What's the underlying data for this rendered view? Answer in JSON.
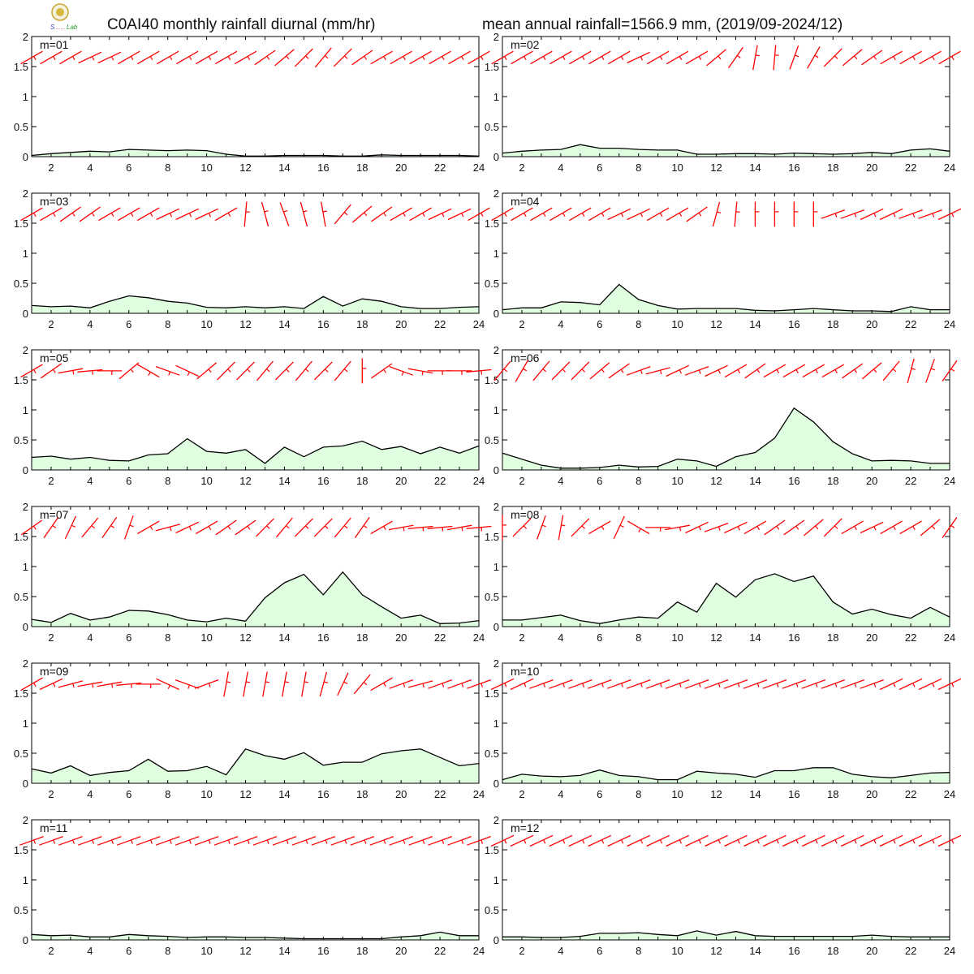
{
  "header": {
    "title_left": "C0AI40 monthly rainfall diurnal (mm/hr)",
    "title_right": "mean annual rainfall=1566.9 mm, (2019/09-2024/12)",
    "logo_text": "Lab"
  },
  "chart_data": {
    "type": "area",
    "x": [
      1,
      2,
      3,
      4,
      5,
      6,
      7,
      8,
      9,
      10,
      11,
      12,
      13,
      14,
      15,
      16,
      17,
      18,
      19,
      20,
      21,
      22,
      23,
      24
    ],
    "xticks": [
      "2",
      "4",
      "6",
      "8",
      "10",
      "12",
      "14",
      "16",
      "18",
      "20",
      "22",
      "24"
    ],
    "xlim": [
      1,
      24
    ],
    "yticks": [
      "0",
      "0.5",
      "1",
      "1.5",
      "2"
    ],
    "ylim": [
      0,
      2
    ],
    "fill_color": "#e0ffe0",
    "line_color": "#000000",
    "wind_color": "#ff0000",
    "panels": [
      {
        "label": "m=01",
        "values": [
          0.02,
          0.05,
          0.07,
          0.09,
          0.08,
          0.12,
          0.11,
          0.1,
          0.11,
          0.1,
          0.04,
          0.01,
          0.01,
          0.02,
          0.02,
          0.02,
          0.01,
          0.01,
          0.03,
          0.02,
          0.02,
          0.02,
          0.02,
          0.01
        ],
        "wind_dir": [
          60,
          60,
          60,
          65,
          65,
          60,
          60,
          60,
          60,
          60,
          60,
          60,
          55,
          50,
          45,
          40,
          45,
          55,
          60,
          60,
          60,
          60,
          60,
          60
        ]
      },
      {
        "label": "m=02",
        "values": [
          0.06,
          0.09,
          0.11,
          0.12,
          0.2,
          0.14,
          0.14,
          0.12,
          0.11,
          0.11,
          0.04,
          0.04,
          0.05,
          0.05,
          0.04,
          0.06,
          0.05,
          0.04,
          0.05,
          0.07,
          0.05,
          0.11,
          0.13,
          0.09
        ],
        "wind_dir": [
          60,
          60,
          60,
          60,
          60,
          60,
          60,
          65,
          60,
          60,
          60,
          50,
          35,
          10,
          5,
          20,
          30,
          45,
          50,
          55,
          60,
          60,
          60,
          60
        ]
      },
      {
        "label": "m=03",
        "values": [
          0.13,
          0.11,
          0.12,
          0.09,
          0.2,
          0.29,
          0.26,
          0.2,
          0.17,
          0.1,
          0.09,
          0.11,
          0.09,
          0.11,
          0.08,
          0.28,
          0.12,
          0.24,
          0.2,
          0.11,
          0.08,
          0.08,
          0.1,
          0.11
        ],
        "wind_dir": [
          60,
          60,
          55,
          55,
          60,
          60,
          60,
          65,
          65,
          65,
          60,
          5,
          345,
          340,
          345,
          350,
          40,
          50,
          55,
          60,
          60,
          65,
          65,
          60
        ]
      },
      {
        "label": "m=04",
        "values": [
          0.06,
          0.09,
          0.09,
          0.19,
          0.18,
          0.14,
          0.48,
          0.23,
          0.13,
          0.07,
          0.08,
          0.08,
          0.08,
          0.05,
          0.04,
          0.06,
          0.08,
          0.06,
          0.04,
          0.04,
          0.03,
          0.11,
          0.06,
          0.06
        ],
        "wind_dir": [
          60,
          60,
          60,
          60,
          60,
          60,
          65,
          65,
          60,
          60,
          55,
          15,
          5,
          0,
          0,
          0,
          0,
          70,
          70,
          65,
          65,
          70,
          70,
          65
        ]
      },
      {
        "label": "m=05",
        "values": [
          0.21,
          0.23,
          0.18,
          0.21,
          0.16,
          0.15,
          0.25,
          0.27,
          0.52,
          0.31,
          0.28,
          0.34,
          0.11,
          0.38,
          0.22,
          0.38,
          0.4,
          0.48,
          0.34,
          0.39,
          0.27,
          0.38,
          0.28,
          0.4
        ],
        "wind_dir": [
          60,
          55,
          80,
          85,
          90,
          50,
          120,
          110,
          115,
          50,
          45,
          45,
          40,
          45,
          40,
          45,
          40,
          0,
          55,
          110,
          100,
          90,
          90,
          85
        ]
      },
      {
        "label": "m=06",
        "values": [
          0.28,
          0.18,
          0.08,
          0.03,
          0.03,
          0.04,
          0.08,
          0.05,
          0.06,
          0.18,
          0.15,
          0.06,
          0.22,
          0.29,
          0.53,
          1.03,
          0.8,
          0.47,
          0.27,
          0.15,
          0.16,
          0.15,
          0.11,
          0.11
        ],
        "wind_dir": [
          40,
          30,
          40,
          45,
          45,
          50,
          55,
          70,
          75,
          65,
          70,
          65,
          60,
          55,
          60,
          60,
          60,
          60,
          55,
          50,
          40,
          15,
          20,
          35
        ]
      },
      {
        "label": "m=07",
        "values": [
          0.12,
          0.07,
          0.22,
          0.11,
          0.16,
          0.27,
          0.26,
          0.2,
          0.11,
          0.08,
          0.14,
          0.09,
          0.48,
          0.73,
          0.87,
          0.53,
          0.91,
          0.53,
          0.33,
          0.14,
          0.19,
          0.05,
          0.06,
          0.1
        ],
        "wind_dir": [
          55,
          35,
          25,
          40,
          35,
          20,
          60,
          75,
          65,
          60,
          55,
          55,
          45,
          40,
          45,
          45,
          40,
          35,
          60,
          80,
          85,
          85,
          80,
          85
        ]
      },
      {
        "label": "m=08",
        "values": [
          0.11,
          0.11,
          0.15,
          0.19,
          0.1,
          0.05,
          0.11,
          0.16,
          0.14,
          0.41,
          0.24,
          0.72,
          0.49,
          0.78,
          0.88,
          0.75,
          0.84,
          0.41,
          0.21,
          0.29,
          0.2,
          0.14,
          0.32,
          0.16
        ],
        "wind_dir": [
          0,
          45,
          20,
          10,
          45,
          60,
          25,
          120,
          90,
          80,
          65,
          70,
          65,
          60,
          55,
          55,
          50,
          45,
          60,
          65,
          60,
          60,
          50,
          35
        ]
      },
      {
        "label": "m=09",
        "values": [
          0.24,
          0.17,
          0.29,
          0.13,
          0.18,
          0.21,
          0.4,
          0.2,
          0.21,
          0.28,
          0.14,
          0.57,
          0.46,
          0.4,
          0.51,
          0.3,
          0.35,
          0.35,
          0.49,
          0.54,
          0.57,
          0.43,
          0.29,
          0.33
        ],
        "wind_dir": [
          60,
          65,
          75,
          80,
          80,
          85,
          90,
          115,
          110,
          70,
          10,
          10,
          10,
          10,
          10,
          15,
          25,
          40,
          60,
          70,
          75,
          70,
          70,
          70
        ]
      },
      {
        "label": "m=10",
        "values": [
          0.06,
          0.15,
          0.12,
          0.11,
          0.13,
          0.22,
          0.13,
          0.11,
          0.06,
          0.06,
          0.2,
          0.17,
          0.15,
          0.1,
          0.21,
          0.21,
          0.26,
          0.26,
          0.15,
          0.11,
          0.09,
          0.13,
          0.17,
          0.18
        ],
        "wind_dir": [
          65,
          65,
          70,
          70,
          70,
          70,
          70,
          70,
          70,
          70,
          70,
          70,
          70,
          70,
          70,
          70,
          70,
          70,
          70,
          70,
          65,
          65,
          65,
          65
        ]
      },
      {
        "label": "m=11",
        "values": [
          0.09,
          0.07,
          0.08,
          0.05,
          0.05,
          0.09,
          0.07,
          0.06,
          0.04,
          0.05,
          0.05,
          0.04,
          0.04,
          0.03,
          0.02,
          0.02,
          0.02,
          0.02,
          0.02,
          0.05,
          0.07,
          0.13,
          0.07,
          0.07
        ],
        "wind_dir": [
          70,
          70,
          70,
          70,
          70,
          70,
          70,
          70,
          70,
          70,
          70,
          70,
          70,
          70,
          70,
          70,
          70,
          70,
          70,
          70,
          70,
          70,
          70,
          70
        ]
      },
      {
        "label": "m=12",
        "values": [
          0.05,
          0.05,
          0.04,
          0.04,
          0.06,
          0.11,
          0.11,
          0.12,
          0.09,
          0.07,
          0.15,
          0.08,
          0.14,
          0.07,
          0.06,
          0.06,
          0.06,
          0.06,
          0.06,
          0.08,
          0.06,
          0.05,
          0.05,
          0.05
        ],
        "wind_dir": [
          65,
          65,
          65,
          65,
          65,
          65,
          65,
          65,
          65,
          65,
          65,
          65,
          65,
          65,
          65,
          65,
          65,
          65,
          65,
          65,
          65,
          65,
          65,
          65
        ]
      }
    ]
  }
}
